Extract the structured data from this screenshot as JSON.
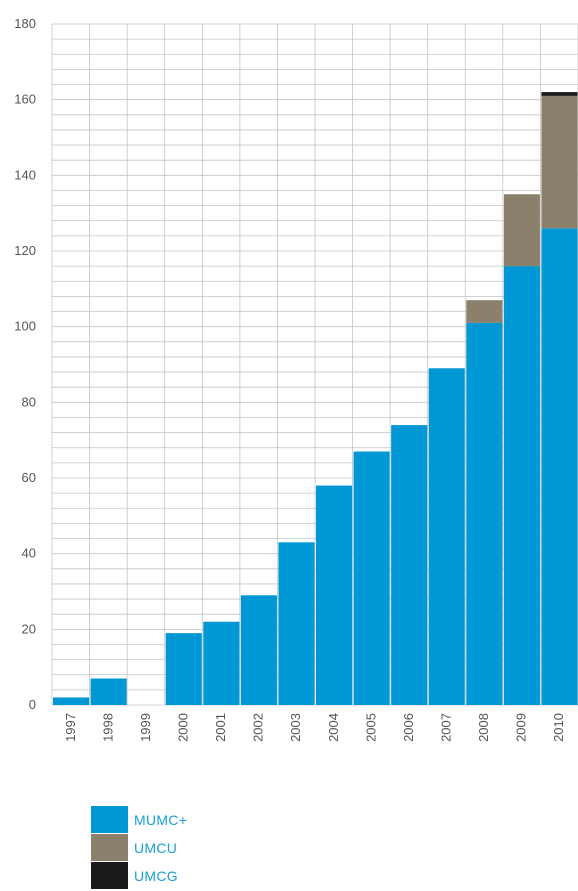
{
  "chart_data": {
    "type": "bar",
    "stacked": true,
    "categories": [
      "1997",
      "1998",
      "1999",
      "2000",
      "2001",
      "2002",
      "2003",
      "2004",
      "2005",
      "2006",
      "2007",
      "2008",
      "2009",
      "2010"
    ],
    "series": [
      {
        "name": "MUMC+",
        "color": "#0097d5",
        "values": [
          2,
          7,
          0,
          19,
          22,
          29,
          43,
          58,
          67,
          74,
          89,
          101,
          116,
          126
        ]
      },
      {
        "name": "UMCU",
        "color": "#8b806b",
        "values": [
          0,
          0,
          0,
          0,
          0,
          0,
          0,
          0,
          0,
          0,
          0,
          6,
          19,
          35
        ]
      },
      {
        "name": "UMCG",
        "color": "#1a1a1a",
        "values": [
          0,
          0,
          0,
          0,
          0,
          0,
          0,
          0,
          0,
          0,
          0,
          0,
          0,
          1
        ]
      }
    ],
    "ylim": [
      0,
      180
    ],
    "yticks": [
      0,
      20,
      40,
      60,
      80,
      100,
      120,
      140,
      160,
      180
    ],
    "grid": true,
    "legend_position": "bottom-left"
  }
}
